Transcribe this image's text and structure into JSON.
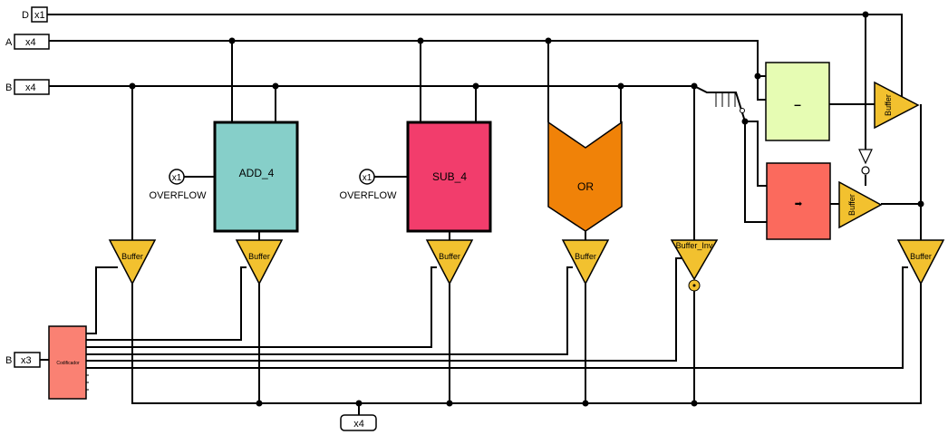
{
  "inputs": {
    "d": {
      "name": "D",
      "width": "x1"
    },
    "a": {
      "name": "A",
      "width": "x4"
    },
    "b": {
      "name": "B",
      "width": "x4"
    },
    "sel": {
      "name": "B",
      "width": "x3"
    }
  },
  "output": {
    "width": "x4"
  },
  "components": {
    "add": {
      "label": "ADD_4",
      "overflow_width": "x1",
      "overflow_label": "OVERFLOW"
    },
    "sub": {
      "label": "SUB_4",
      "overflow_width": "x1",
      "overflow_label": "OVERFLOW"
    },
    "or": {
      "label": "OR"
    },
    "minus": {
      "label": "–"
    },
    "arrow": {
      "label": "➡"
    },
    "decoder": {
      "label": "Codificador"
    }
  },
  "buffers": {
    "label": "Buffer",
    "inv_label": "Buffer_Inv"
  },
  "colors": {
    "add_fill": "#86cfc9",
    "sub_fill": "#f23d6c",
    "or_fill": "#f08208",
    "minus_fill": "#e6fcb3",
    "arrow_fill": "#fb6a5d",
    "decoder_fill": "#fa8173",
    "buffer_fill": "#f2c12f",
    "wire": "#000000"
  }
}
